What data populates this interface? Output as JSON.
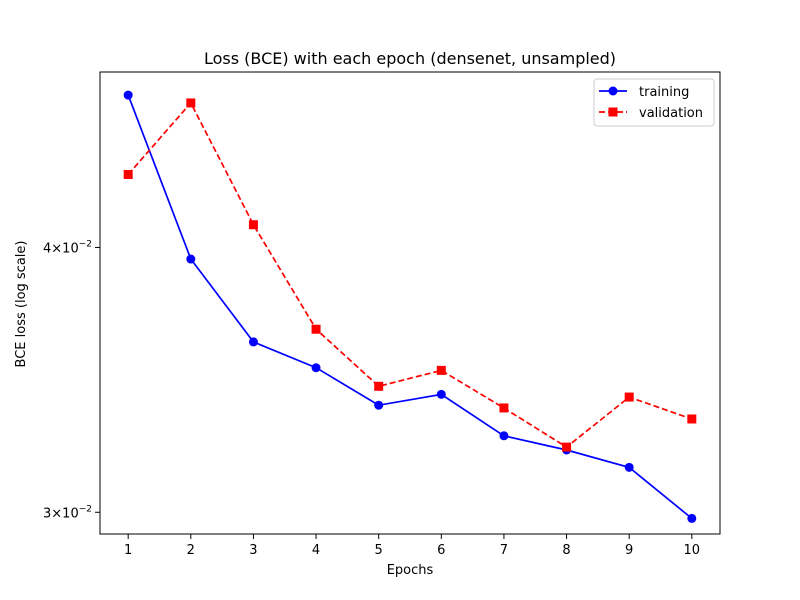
{
  "chart_data": {
    "type": "line",
    "title": "Loss (BCE) with each epoch (densenet, unsampled)",
    "xlabel": "Epochs",
    "ylabel": "BCE loss (log scale)",
    "x": [
      1,
      2,
      3,
      4,
      5,
      6,
      7,
      8,
      9,
      10
    ],
    "x_ticks": [
      "1",
      "2",
      "3",
      "4",
      "5",
      "6",
      "7",
      "8",
      "9",
      "10"
    ],
    "yscale": "log",
    "ylim": [
      0.0293,
      0.0484
    ],
    "y_ticks": [
      {
        "value": 0.03,
        "base": "3",
        "exp": "−2"
      },
      {
        "value": 0.04,
        "base": "4",
        "exp": "−2"
      }
    ],
    "grid": false,
    "legend_position": "top-right",
    "series": [
      {
        "name": "training",
        "color": "#0000ff",
        "marker": "circle",
        "linestyle": "solid",
        "values": [
          0.0472,
          0.0395,
          0.0361,
          0.0351,
          0.0337,
          0.0341,
          0.0326,
          0.0321,
          0.0315,
          0.0298
        ]
      },
      {
        "name": "validation",
        "color": "#ff0000",
        "marker": "square",
        "linestyle": "dashed",
        "values": [
          0.0433,
          0.0468,
          0.041,
          0.0366,
          0.0344,
          0.035,
          0.0336,
          0.0322,
          0.034,
          0.0332
        ]
      }
    ]
  }
}
